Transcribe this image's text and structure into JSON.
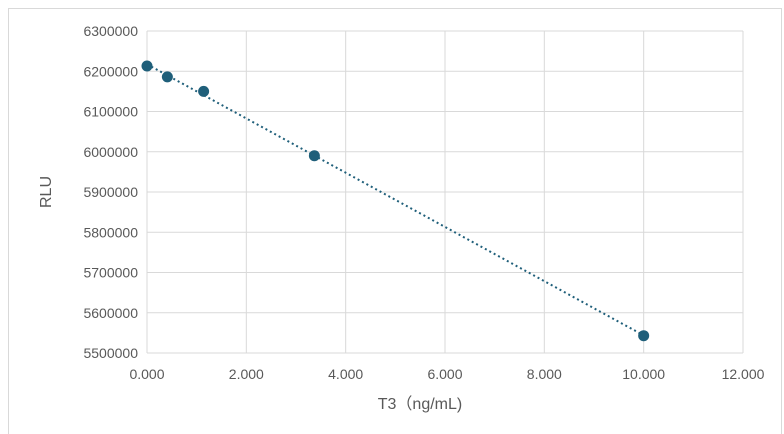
{
  "chart_data": {
    "type": "scatter",
    "title": "",
    "xlabel": "T3（ng/mL)",
    "ylabel": "RLU",
    "xlim": [
      0,
      12
    ],
    "ylim": [
      5500000,
      6300000
    ],
    "x_ticks": [
      "0.000",
      "2.000",
      "4.000",
      "6.000",
      "8.000",
      "10.000",
      "12.000"
    ],
    "y_ticks": [
      "5500000",
      "5600000",
      "5700000",
      "5800000",
      "5900000",
      "6000000",
      "6100000",
      "6200000",
      "6300000"
    ],
    "grid": true,
    "legend": "none",
    "series": [
      {
        "points": [
          {
            "x": 0.0,
            "y": 6213000
          },
          {
            "x": 0.41,
            "y": 6186000
          },
          {
            "x": 1.14,
            "y": 6150000
          },
          {
            "x": 3.37,
            "y": 5990000
          },
          {
            "x": 10.0,
            "y": 5543000
          }
        ],
        "color": "#1f5f7a",
        "trendline": {
          "type": "linear",
          "style": "dotted",
          "color": "#1f5f7a"
        }
      }
    ]
  }
}
